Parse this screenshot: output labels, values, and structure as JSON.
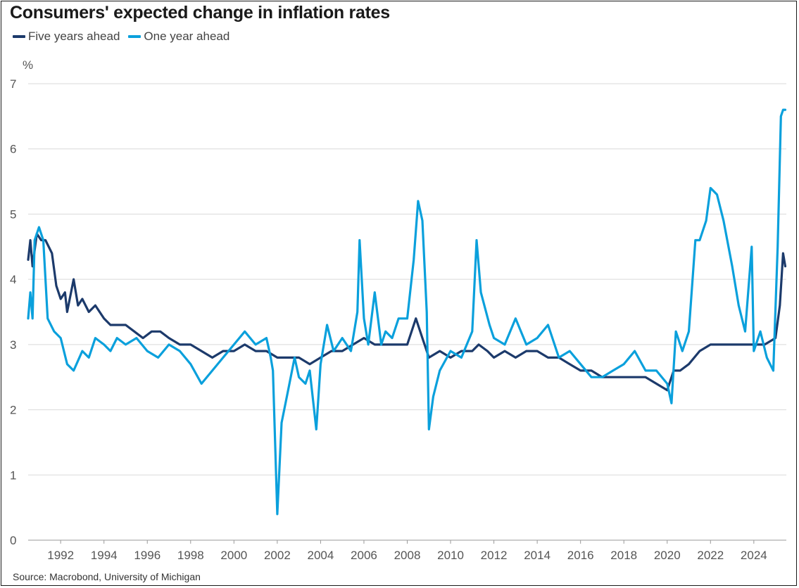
{
  "header": {
    "title": "Consumers' expected change in inflation rates",
    "source": "Source: Macrobond, University of Michigan"
  },
  "colors": {
    "five_year": "#1c3a6b",
    "one_year": "#0aa0dc",
    "grid": "#d9d9d9",
    "axis_text": "#555555"
  },
  "chart_data": {
    "type": "line",
    "title": "Consumers' expected change in inflation rates",
    "ylabel": "%",
    "xlabel": "",
    "xlim": [
      1990.5,
      2025.5
    ],
    "ylim": [
      0,
      7
    ],
    "yticks": [
      0,
      1,
      2,
      3,
      4,
      5,
      6,
      7
    ],
    "xtick_labels": [
      "1992",
      "1994",
      "1996",
      "1998",
      "2000",
      "2002",
      "2004",
      "2006",
      "2008",
      "2010",
      "2012",
      "2014",
      "2016",
      "2018",
      "2020",
      "2022",
      "2024"
    ],
    "grid": "horizontal",
    "legend_position": "top-left",
    "series": [
      {
        "name": "Five years ahead",
        "x": [
          1990.5,
          1990.6,
          1990.7,
          1990.9,
          1991.1,
          1991.3,
          1991.6,
          1991.8,
          1992.0,
          1992.2,
          1992.3,
          1992.6,
          1992.8,
          1993.0,
          1993.3,
          1993.6,
          1994.0,
          1994.3,
          1994.6,
          1995.0,
          1995.4,
          1995.8,
          1996.2,
          1996.6,
          1997.0,
          1997.5,
          1998.0,
          1998.5,
          1999.0,
          1999.5,
          2000.0,
          2000.5,
          2001.0,
          2001.5,
          2002.0,
          2002.5,
          2003.0,
          2003.5,
          2004.0,
          2004.5,
          2005.0,
          2005.5,
          2006.0,
          2006.5,
          2007.0,
          2007.5,
          2008.0,
          2008.4,
          2008.7,
          2009.0,
          2009.5,
          2010.0,
          2010.5,
          2011.0,
          2011.3,
          2011.7,
          2012.0,
          2012.5,
          2013.0,
          2013.5,
          2014.0,
          2014.5,
          2015.0,
          2015.5,
          2016.0,
          2016.5,
          2017.0,
          2017.5,
          2018.0,
          2018.5,
          2019.0,
          2019.5,
          2020.0,
          2020.3,
          2020.6,
          2021.0,
          2021.5,
          2022.0,
          2022.5,
          2023.0,
          2023.5,
          2024.0,
          2024.5,
          2025.0,
          2025.2,
          2025.35,
          2025.45
        ],
        "values": [
          4.3,
          4.6,
          4.2,
          4.7,
          4.6,
          4.6,
          4.4,
          3.9,
          3.7,
          3.8,
          3.5,
          4.0,
          3.6,
          3.7,
          3.5,
          3.6,
          3.4,
          3.3,
          3.3,
          3.3,
          3.2,
          3.1,
          3.2,
          3.2,
          3.1,
          3.0,
          3.0,
          2.9,
          2.8,
          2.9,
          2.9,
          3.0,
          2.9,
          2.9,
          2.8,
          2.8,
          2.8,
          2.7,
          2.8,
          2.9,
          2.9,
          3.0,
          3.1,
          3.0,
          3.0,
          3.0,
          3.0,
          3.4,
          3.1,
          2.8,
          2.9,
          2.8,
          2.9,
          2.9,
          3.0,
          2.9,
          2.8,
          2.9,
          2.8,
          2.9,
          2.9,
          2.8,
          2.8,
          2.7,
          2.6,
          2.6,
          2.5,
          2.5,
          2.5,
          2.5,
          2.5,
          2.4,
          2.3,
          2.6,
          2.6,
          2.7,
          2.9,
          3.0,
          3.0,
          3.0,
          3.0,
          3.0,
          3.0,
          3.1,
          3.6,
          4.4,
          4.2
        ]
      },
      {
        "name": "One year ahead",
        "x": [
          1990.5,
          1990.6,
          1990.7,
          1990.8,
          1991.0,
          1991.2,
          1991.4,
          1991.7,
          1992.0,
          1992.3,
          1992.6,
          1993.0,
          1993.3,
          1993.6,
          1994.0,
          1994.3,
          1994.6,
          1995.0,
          1995.5,
          1996.0,
          1996.5,
          1997.0,
          1997.5,
          1998.0,
          1998.5,
          1999.0,
          1999.5,
          2000.0,
          2000.5,
          2001.0,
          2001.5,
          2001.7,
          2001.8,
          2002.0,
          2002.2,
          2002.5,
          2002.8,
          2003.0,
          2003.3,
          2003.5,
          2003.8,
          2004.0,
          2004.3,
          2004.6,
          2005.0,
          2005.4,
          2005.7,
          2005.8,
          2006.0,
          2006.2,
          2006.5,
          2006.8,
          2007.0,
          2007.3,
          2007.6,
          2008.0,
          2008.3,
          2008.5,
          2008.7,
          2008.9,
          2009.0,
          2009.2,
          2009.5,
          2010.0,
          2010.5,
          2011.0,
          2011.2,
          2011.4,
          2011.8,
          2012.0,
          2012.5,
          2013.0,
          2013.5,
          2014.0,
          2014.5,
          2015.0,
          2015.5,
          2016.0,
          2016.5,
          2017.0,
          2017.5,
          2018.0,
          2018.5,
          2019.0,
          2019.5,
          2020.0,
          2020.2,
          2020.4,
          2020.7,
          2021.0,
          2021.3,
          2021.5,
          2021.8,
          2022.0,
          2022.3,
          2022.6,
          2023.0,
          2023.3,
          2023.6,
          2023.9,
          2024.0,
          2024.3,
          2024.6,
          2024.9,
          2025.1,
          2025.25,
          2025.35,
          2025.45
        ],
        "values": [
          3.4,
          3.8,
          3.4,
          4.6,
          4.8,
          4.6,
          3.4,
          3.2,
          3.1,
          2.7,
          2.6,
          2.9,
          2.8,
          3.1,
          3.0,
          2.9,
          3.1,
          3.0,
          3.1,
          2.9,
          2.8,
          3.0,
          2.9,
          2.7,
          2.4,
          2.6,
          2.8,
          3.0,
          3.2,
          3.0,
          3.1,
          2.8,
          2.6,
          0.4,
          1.8,
          2.3,
          2.8,
          2.5,
          2.4,
          2.6,
          1.7,
          2.7,
          3.3,
          2.9,
          3.1,
          2.9,
          3.5,
          4.6,
          3.4,
          3.0,
          3.8,
          3.0,
          3.2,
          3.1,
          3.4,
          3.4,
          4.3,
          5.2,
          4.9,
          3.5,
          1.7,
          2.2,
          2.6,
          2.9,
          2.8,
          3.2,
          4.6,
          3.8,
          3.3,
          3.1,
          3.0,
          3.4,
          3.0,
          3.1,
          3.3,
          2.8,
          2.9,
          2.7,
          2.5,
          2.5,
          2.6,
          2.7,
          2.9,
          2.6,
          2.6,
          2.4,
          2.1,
          3.2,
          2.9,
          3.2,
          4.6,
          4.6,
          4.9,
          5.4,
          5.3,
          4.9,
          4.2,
          3.6,
          3.2,
          4.5,
          2.9,
          3.2,
          2.8,
          2.6,
          4.5,
          6.5,
          6.6,
          6.6
        ]
      }
    ]
  }
}
